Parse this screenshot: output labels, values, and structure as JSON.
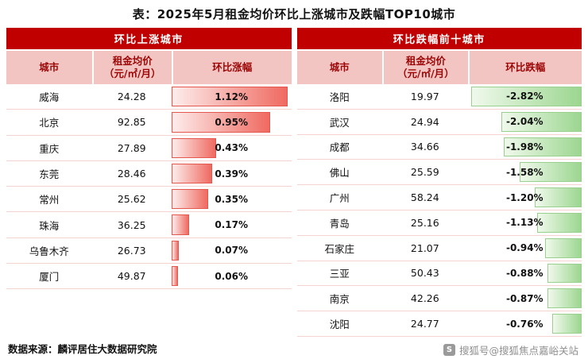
{
  "title": "表：2025年5月租金均价环比上涨城市及跌幅TOP10城市",
  "panels": [
    {
      "band_title": "环比上涨城市",
      "col_city": "城市",
      "col_price_line1": "租金均价",
      "col_price_line2": "（元/㎡/月）",
      "col_change": "环比涨幅",
      "rows": [
        {
          "city": "威海",
          "price": "24.28",
          "change": "1.12%",
          "value": 1.12
        },
        {
          "city": "北京",
          "price": "92.85",
          "change": "0.95%",
          "value": 0.95
        },
        {
          "city": "重庆",
          "price": "27.89",
          "change": "0.43%",
          "value": 0.43
        },
        {
          "city": "东莞",
          "price": "28.46",
          "change": "0.39%",
          "value": 0.39
        },
        {
          "city": "常州",
          "price": "25.62",
          "change": "0.35%",
          "value": 0.35
        },
        {
          "city": "珠海",
          "price": "36.25",
          "change": "0.17%",
          "value": 0.17
        },
        {
          "city": "乌鲁木齐",
          "price": "26.73",
          "change": "0.07%",
          "value": 0.07
        },
        {
          "city": "厦门",
          "price": "49.87",
          "change": "0.06%",
          "value": 0.06
        }
      ]
    },
    {
      "band_title": "环比跌幅前十城市",
      "col_city": "城市",
      "col_price_line1": "租金均价",
      "col_price_line2": "（元/㎡/月）",
      "col_change": "环比跌幅",
      "rows": [
        {
          "city": "洛阳",
          "price": "19.97",
          "change": "-2.82%",
          "value": -2.82
        },
        {
          "city": "武汉",
          "price": "24.94",
          "change": "-2.04%",
          "value": -2.04
        },
        {
          "city": "成都",
          "price": "34.66",
          "change": "-1.98%",
          "value": -1.98
        },
        {
          "city": "佛山",
          "price": "25.59",
          "change": "-1.58%",
          "value": -1.58
        },
        {
          "city": "广州",
          "price": "58.24",
          "change": "-1.20%",
          "value": -1.2
        },
        {
          "city": "青岛",
          "price": "25.16",
          "change": "-1.13%",
          "value": -1.13
        },
        {
          "city": "石家庄",
          "price": "21.07",
          "change": "-0.94%",
          "value": -0.94
        },
        {
          "city": "三亚",
          "price": "50.43",
          "change": "-0.88%",
          "value": -0.88
        },
        {
          "city": "南京",
          "price": "42.26",
          "change": "-0.87%",
          "value": -0.87
        },
        {
          "city": "沈阳",
          "price": "24.77",
          "change": "-0.76%",
          "value": -0.76
        }
      ]
    }
  ],
  "footer": {
    "source": "数据来源：麟评居住大数据研究院",
    "watermark": "搜狐号@搜狐焦点嘉峪关站",
    "watermark_logo_letter": "S"
  },
  "colors": {
    "band_red": "#c00000",
    "header_pink": "#f2c5c3",
    "header_text_red": "#9c0606",
    "rise_bar_start": "#fdedec",
    "rise_bar_end": "#ef6a61",
    "rise_bar_border": "#e4574e",
    "fall_bar_start": "#f0f9ec",
    "fall_bar_end": "#9cd690",
    "fall_bar_border": "#9ad08e"
  },
  "chart_data": [
    {
      "type": "bar",
      "title": "环比上涨城市",
      "orientation": "horizontal",
      "categories": [
        "威海",
        "北京",
        "重庆",
        "东莞",
        "常州",
        "珠海",
        "乌鲁木齐",
        "厦门"
      ],
      "series": [
        {
          "name": "租金均价（元/㎡/月）",
          "values": [
            24.28,
            92.85,
            27.89,
            28.46,
            25.62,
            36.25,
            26.73,
            49.87
          ]
        },
        {
          "name": "环比涨幅(%)",
          "values": [
            1.12,
            0.95,
            0.43,
            0.39,
            0.35,
            0.17,
            0.07,
            0.06
          ]
        }
      ],
      "xlabel": "",
      "ylabel": "",
      "xlim": [
        0,
        1.12
      ],
      "grid": false,
      "legend": false
    },
    {
      "type": "bar",
      "title": "环比跌幅前十城市",
      "orientation": "horizontal",
      "categories": [
        "洛阳",
        "武汉",
        "成都",
        "佛山",
        "广州",
        "青岛",
        "石家庄",
        "三亚",
        "南京",
        "沈阳"
      ],
      "series": [
        {
          "name": "租金均价（元/㎡/月）",
          "values": [
            19.97,
            24.94,
            34.66,
            25.59,
            58.24,
            25.16,
            21.07,
            50.43,
            42.26,
            24.77
          ]
        },
        {
          "name": "环比跌幅(%)",
          "values": [
            -2.82,
            -2.04,
            -1.98,
            -1.58,
            -1.2,
            -1.13,
            -0.94,
            -0.88,
            -0.87,
            -0.76
          ]
        }
      ],
      "xlabel": "",
      "ylabel": "",
      "xlim": [
        -2.82,
        0
      ],
      "grid": false,
      "legend": false
    }
  ]
}
